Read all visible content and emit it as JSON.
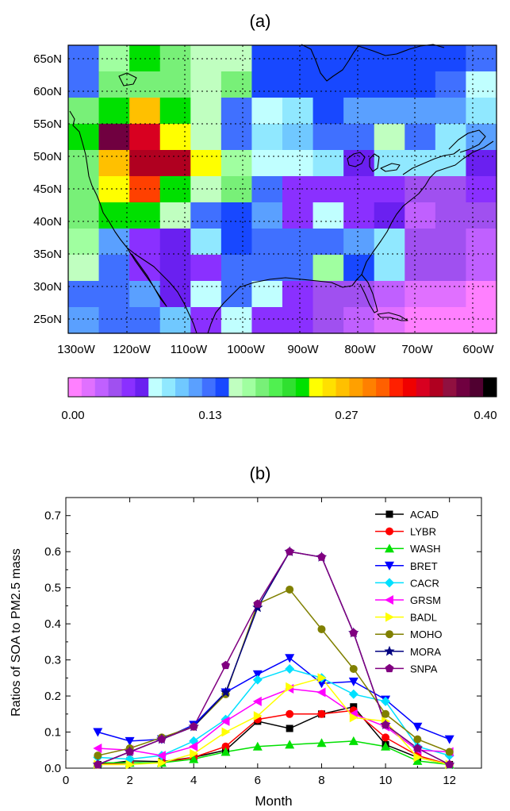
{
  "chart_data": [
    {
      "type": "heatmap",
      "title": "(a)",
      "lat_labels": [
        "65oN",
        "60oN",
        "55oN",
        "50oN",
        "45oN",
        "40oN",
        "35oN",
        "30oN",
        "25oN"
      ],
      "lon_labels": [
        "130oW",
        "120oW",
        "110oW",
        "100oW",
        "90oW",
        "80oW",
        "70oW",
        "60oW"
      ],
      "colorbar": {
        "tick_labels": [
          "0.00",
          "0.13",
          "0.27",
          "0.40"
        ],
        "range": [
          0,
          0.4
        ],
        "colors": [
          "#ff80ff",
          "#e070ff",
          "#c060ff",
          "#a050f0",
          "#8a30ff",
          "#6a20f0",
          "#c0ffff",
          "#90e8ff",
          "#70c8ff",
          "#5aa0ff",
          "#4070ff",
          "#1848ff",
          "#c0ffc0",
          "#a0ffa0",
          "#78f078",
          "#50f050",
          "#30e030",
          "#00e000",
          "#ffff00",
          "#ffe000",
          "#ffc000",
          "#ffa000",
          "#ff8000",
          "#ff6000",
          "#ff2000",
          "#f00000",
          "#d80020",
          "#b00020",
          "#901040",
          "#700040",
          "#500030",
          "#000000"
        ]
      },
      "grid_colors": [
        [
          "#4070ff",
          "#a0ffa0",
          "#00e000",
          "#78f078",
          "#c0ffc0",
          "#c0ffc0",
          "#1848ff",
          "#1848ff",
          "#1848ff",
          "#1848ff",
          "#1848ff",
          "#1848ff",
          "#1848ff",
          "#4070ff"
        ],
        [
          "#4070ff",
          "#78f078",
          "#78f078",
          "#78f078",
          "#c0ffc0",
          "#78f078",
          "#1848ff",
          "#1848ff",
          "#1848ff",
          "#1848ff",
          "#1848ff",
          "#1848ff",
          "#4070ff",
          "#c0ffff"
        ],
        [
          "#78f078",
          "#00e000",
          "#ffc000",
          "#00e000",
          "#c0ffc0",
          "#4070ff",
          "#c0ffff",
          "#90e8ff",
          "#1848ff",
          "#5aa0ff",
          "#5aa0ff",
          "#5aa0ff",
          "#5aa0ff",
          "#90e8ff"
        ],
        [
          "#00e000",
          "#700040",
          "#d80020",
          "#ffff00",
          "#c0ffc0",
          "#4070ff",
          "#90e8ff",
          "#70c8ff",
          "#4070ff",
          "#4070ff",
          "#c0ffc0",
          "#4070ff",
          "#90e8ff",
          "#5aa0ff"
        ],
        [
          "#78f078",
          "#ffc000",
          "#b00020",
          "#b00020",
          "#ffff00",
          "#a0ffa0",
          "#c0ffff",
          "#c0ffff",
          "#90e8ff",
          "#6a20f0",
          "#90e8ff",
          "#90e8ff",
          "#90e8ff",
          "#6a20f0"
        ],
        [
          "#78f078",
          "#ffff00",
          "#ff4000",
          "#00e000",
          "#c0ffc0",
          "#78f078",
          "#4070ff",
          "#8a30ff",
          "#8a30ff",
          "#8a30ff",
          "#8a30ff",
          "#a050f0",
          "#a050f0",
          "#8a30ff"
        ],
        [
          "#78f078",
          "#00e000",
          "#00e000",
          "#c0ffc0",
          "#4070ff",
          "#1848ff",
          "#5aa0ff",
          "#8a30ff",
          "#c0ffff",
          "#8a30ff",
          "#6a20f0",
          "#c060ff",
          "#a050f0",
          "#a050f0"
        ],
        [
          "#a0ffa0",
          "#5aa0ff",
          "#8a30ff",
          "#6a20f0",
          "#90e8ff",
          "#1848ff",
          "#4070ff",
          "#4070ff",
          "#4070ff",
          "#5aa0ff",
          "#90e8ff",
          "#a050f0",
          "#a050f0",
          "#c060ff"
        ],
        [
          "#c0ffc0",
          "#4070ff",
          "#8a30ff",
          "#6a20f0",
          "#8a30ff",
          "#4070ff",
          "#4070ff",
          "#4070ff",
          "#a0ffa0",
          "#1848ff",
          "#90e8ff",
          "#a050f0",
          "#a050f0",
          "#c060ff"
        ],
        [
          "#4070ff",
          "#4070ff",
          "#5aa0ff",
          "#6a20f0",
          "#c0ffff",
          "#4070ff",
          "#c0ffff",
          "#8a30ff",
          "#a050f0",
          "#a050f0",
          "#c060ff",
          "#e070ff",
          "#e070ff",
          "#ff80ff"
        ],
        [
          "#5aa0ff",
          "#4070ff",
          "#4070ff",
          "#70c8ff",
          "#8a30ff",
          "#c0ffff",
          "#8a30ff",
          "#8a30ff",
          "#a050f0",
          "#c060ff",
          "#e070ff",
          "#ff80ff",
          "#ff80ff",
          "#ff80ff"
        ]
      ]
    },
    {
      "type": "line",
      "title": "(b)",
      "xlabel": "Month",
      "ylabel": "Ratios of SOA to PM2.5 mass",
      "xlim": [
        0,
        13
      ],
      "ylim": [
        0,
        0.75
      ],
      "xticks": [
        0,
        2,
        4,
        6,
        8,
        10,
        12
      ],
      "yticks": [
        0.0,
        0.1,
        0.2,
        0.3,
        0.4,
        0.5,
        0.6,
        0.7
      ],
      "ytick_labels": [
        "0.0",
        "0.1",
        "0.2",
        "0.3",
        "0.4",
        "0.5",
        "0.6",
        "0.7"
      ],
      "x": [
        1,
        2,
        3,
        4,
        5,
        6,
        7,
        8,
        9,
        10,
        11,
        12
      ],
      "series": [
        {
          "name": "ACAD",
          "color": "#000000",
          "marker": "square",
          "values": [
            0.01,
            0.02,
            0.018,
            0.03,
            0.05,
            0.13,
            0.11,
            0.15,
            0.17,
            0.065,
            0.03,
            0.01
          ]
        },
        {
          "name": "LYBR",
          "color": "#ff0000",
          "marker": "circle",
          "values": [
            0.01,
            0.015,
            0.015,
            0.03,
            0.06,
            0.135,
            0.15,
            0.15,
            0.16,
            0.085,
            0.035,
            0.01
          ]
        },
        {
          "name": "WASH",
          "color": "#00e000",
          "marker": "triangle-up",
          "values": [
            0.015,
            0.015,
            0.015,
            0.025,
            0.045,
            0.06,
            0.065,
            0.07,
            0.075,
            0.06,
            0.02,
            0.01
          ]
        },
        {
          "name": "BRET",
          "color": "#0000ff",
          "marker": "triangle-down",
          "values": [
            0.1,
            0.075,
            0.08,
            0.12,
            0.21,
            0.26,
            0.305,
            0.235,
            0.24,
            0.19,
            0.115,
            0.08
          ]
        },
        {
          "name": "CACR",
          "color": "#00e0ff",
          "marker": "diamond",
          "values": [
            0.03,
            0.025,
            0.035,
            0.075,
            0.135,
            0.245,
            0.275,
            0.25,
            0.205,
            0.185,
            0.06,
            0.035
          ]
        },
        {
          "name": "GRSM",
          "color": "#ff00ff",
          "marker": "triangle-left",
          "values": [
            0.055,
            0.05,
            0.035,
            0.06,
            0.13,
            0.185,
            0.22,
            0.21,
            0.15,
            0.115,
            0.05,
            0.045
          ]
        },
        {
          "name": "BADL",
          "color": "#ffff00",
          "marker": "triangle-right",
          "values": [
            0.01,
            0.01,
            0.015,
            0.04,
            0.1,
            0.145,
            0.225,
            0.25,
            0.14,
            0.13,
            0.03,
            0.01
          ]
        },
        {
          "name": "MOHO",
          "color": "#808000",
          "marker": "circle",
          "values": [
            0.035,
            0.055,
            0.085,
            0.115,
            0.205,
            0.455,
            0.495,
            0.385,
            0.275,
            0.15,
            0.08,
            0.045
          ]
        },
        {
          "name": "MORA",
          "color": "#000080",
          "marker": "star",
          "values": [
            0.01,
            0.045,
            0.08,
            0.115,
            0.21,
            0.445,
            0.6,
            0.585,
            0.375,
            0.12,
            0.055,
            0.01
          ]
        },
        {
          "name": "SNPA",
          "color": "#800080",
          "marker": "pentagon",
          "values": [
            0.01,
            0.045,
            0.08,
            0.115,
            0.285,
            0.455,
            0.6,
            0.585,
            0.375,
            0.12,
            0.055,
            0.01
          ]
        }
      ],
      "legend_position": "top-right"
    }
  ]
}
